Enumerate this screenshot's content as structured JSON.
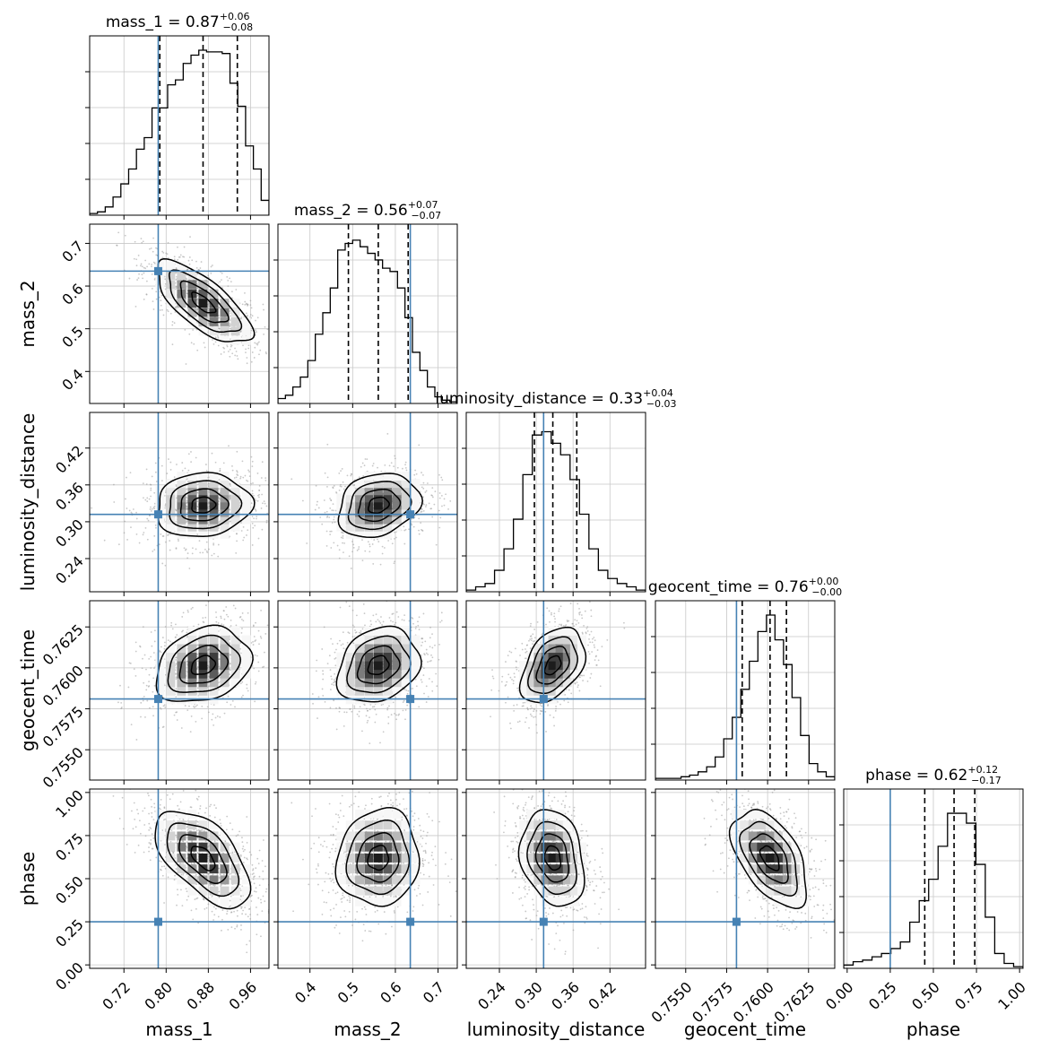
{
  "chart_data": {
    "type": "corner",
    "parameters": [
      "mass_1",
      "mass_2",
      "luminosity_distance",
      "geocent_time",
      "phase"
    ],
    "ranges": [
      [
        0.655,
        0.995
      ],
      [
        0.325,
        0.745
      ],
      [
        0.186,
        0.478
      ],
      [
        0.75315,
        0.7641
      ],
      [
        -0.02,
        1.02
      ]
    ],
    "ticks": [
      [
        "0.72",
        "0.80",
        "0.88",
        "0.96"
      ],
      [
        "0.4",
        "0.5",
        "0.6",
        "0.7"
      ],
      [
        "0.24",
        "0.30",
        "0.36",
        "0.42"
      ],
      [
        "0.7550",
        "0.7575",
        "0.7600",
        "0.7625"
      ],
      [
        "0.00",
        "0.25",
        "0.50",
        "0.75",
        "1.00"
      ]
    ],
    "truths": [
      0.785,
      0.635,
      0.312,
      0.7581,
      0.25
    ],
    "truth_color": "#4682b4",
    "titles": [
      {
        "main": "mass_1 = 0.87",
        "plus": "+0.06",
        "minus": "−0.08"
      },
      {
        "main": "mass_2 = 0.56",
        "plus": "+0.07",
        "minus": "−0.07"
      },
      {
        "main": "luminosity_distance = 0.33",
        "plus": "+0.04",
        "minus": "−0.03"
      },
      {
        "main": "geocent_time = 0.76",
        "plus": "+0.00",
        "minus": "−0.00"
      },
      {
        "main": "phase = 0.62",
        "plus": "+0.12",
        "minus": "−0.17"
      }
    ],
    "quantiles": [
      [
        0.788,
        0.87,
        0.935
      ],
      [
        0.49,
        0.56,
        0.63
      ],
      [
        0.297,
        0.327,
        0.366
      ],
      [
        0.75845,
        0.76015,
        0.76115
      ],
      [
        0.45,
        0.62,
        0.74
      ]
    ],
    "hist1d": [
      [
        1,
        2,
        5,
        11,
        19,
        28,
        40,
        47,
        65,
        65,
        79,
        82,
        92,
        97,
        100,
        99,
        99,
        98,
        80,
        66,
        42,
        28,
        9
      ],
      [
        3,
        5,
        10,
        16,
        26,
        42,
        55,
        70,
        93,
        97,
        99,
        95,
        91,
        87,
        82,
        80,
        70,
        52,
        31,
        20,
        10,
        4,
        2,
        1
      ],
      [
        1,
        3,
        5,
        13,
        26,
        44,
        71,
        95,
        97,
        90,
        83,
        68,
        47,
        26,
        13,
        8,
        5,
        3,
        1
      ],
      [
        1,
        1,
        1,
        2,
        3,
        5,
        8,
        14,
        25,
        38,
        55,
        72,
        90,
        100,
        85,
        70,
        50,
        27,
        10,
        5,
        2
      ],
      [
        2,
        4,
        5,
        7,
        9,
        12,
        16,
        28,
        41,
        54,
        74,
        94,
        94,
        88,
        63,
        31,
        9,
        3,
        1
      ]
    ],
    "correlations": [
      [
        1.0,
        -0.72,
        0.08,
        0.25,
        -0.58
      ],
      [
        -0.72,
        1.0,
        0.22,
        0.22,
        0.08
      ],
      [
        0.08,
        0.22,
        1.0,
        0.42,
        -0.22
      ],
      [
        0.25,
        0.22,
        0.42,
        1.0,
        -0.52
      ],
      [
        -0.58,
        0.08,
        -0.22,
        -0.52,
        1.0
      ]
    ],
    "sigmas": [
      0.045,
      0.048,
      0.026,
      0.00115,
      0.14
    ],
    "grid": true
  }
}
